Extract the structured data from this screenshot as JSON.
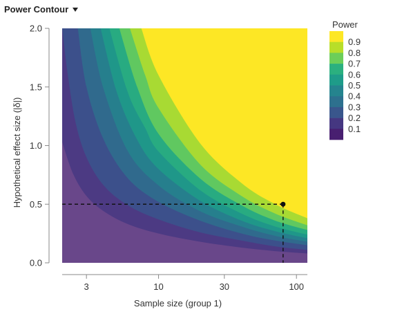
{
  "panel": {
    "title": "Power Contour"
  },
  "chart_data": {
    "type": "heatmap",
    "subtype": "contour",
    "xlabel": "Sample size (group 1)",
    "ylabel": "Hypothetical effect size (|δ|)",
    "x_scale": "log",
    "xlim": [
      2,
      120
    ],
    "ylim": [
      0,
      2
    ],
    "x_ticks": [
      3,
      10,
      30,
      100
    ],
    "x_tick_labels": [
      "3",
      "10",
      "30",
      "100"
    ],
    "y_ticks": [
      0,
      0.5,
      1,
      1.5,
      2
    ],
    "y_tick_labels": [
      "0.0",
      "0.5",
      "1.0",
      "1.5",
      "2.0"
    ],
    "legend": {
      "title": "Power",
      "position": "right",
      "levels": [
        0.9,
        0.8,
        0.7,
        0.6,
        0.5,
        0.4,
        0.3,
        0.2,
        0.1
      ],
      "labels": [
        "0.9",
        "0.8",
        "0.7",
        "0.6",
        "0.5",
        "0.4",
        "0.3",
        "0.2",
        "0.1"
      ],
      "colors": [
        "#FDE725",
        "#B8DE29",
        "#6CCE59",
        "#2BB07F",
        "#1E9C89",
        "#25848E",
        "#2D708E",
        "#39568C",
        "#453781",
        "#481F70"
      ]
    },
    "contours": [
      {
        "level": 0.1,
        "color": "#453781",
        "points": [
          [
            2,
            1.03
          ],
          [
            2.4,
            0.76
          ],
          [
            3,
            0.57
          ],
          [
            4,
            0.44
          ],
          [
            6,
            0.33
          ],
          [
            10,
            0.25
          ],
          [
            20,
            0.18
          ],
          [
            40,
            0.13
          ],
          [
            70,
            0.1
          ],
          [
            120,
            0.08
          ]
        ]
      },
      {
        "level": 0.2,
        "color": "#39568C",
        "points": [
          [
            2,
            2.0
          ],
          [
            2.2,
            1.6
          ],
          [
            2.5,
            1.2
          ],
          [
            3,
            0.9
          ],
          [
            4,
            0.66
          ],
          [
            6,
            0.49
          ],
          [
            10,
            0.37
          ],
          [
            20,
            0.26
          ],
          [
            40,
            0.19
          ],
          [
            70,
            0.14
          ],
          [
            120,
            0.11
          ]
        ]
      },
      {
        "level": 0.3,
        "color": "#2D708E",
        "points": [
          [
            2.6,
            2.0
          ],
          [
            3,
            1.5
          ],
          [
            4,
            1.05
          ],
          [
            6,
            0.72
          ],
          [
            10,
            0.52
          ],
          [
            20,
            0.36
          ],
          [
            40,
            0.25
          ],
          [
            70,
            0.19
          ],
          [
            120,
            0.15
          ]
        ]
      },
      {
        "level": 0.4,
        "color": "#25848E",
        "points": [
          [
            3.2,
            2.0
          ],
          [
            4,
            1.48
          ],
          [
            6,
            0.95
          ],
          [
            10,
            0.66
          ],
          [
            20,
            0.44
          ],
          [
            40,
            0.31
          ],
          [
            70,
            0.23
          ],
          [
            120,
            0.18
          ]
        ]
      },
      {
        "level": 0.5,
        "color": "#1E9C89",
        "points": [
          [
            3.8,
            2.0
          ],
          [
            5,
            1.45
          ],
          [
            7,
            1.05
          ],
          [
            10,
            0.8
          ],
          [
            20,
            0.53
          ],
          [
            40,
            0.36
          ],
          [
            70,
            0.27
          ],
          [
            120,
            0.21
          ]
        ]
      },
      {
        "level": 0.6,
        "color": "#2BB07F",
        "points": [
          [
            4.4,
            2.0
          ],
          [
            6,
            1.45
          ],
          [
            8,
            1.15
          ],
          [
            10,
            0.95
          ],
          [
            20,
            0.62
          ],
          [
            40,
            0.42
          ],
          [
            70,
            0.31
          ],
          [
            120,
            0.24
          ]
        ]
      },
      {
        "level": 0.7,
        "color": "#6CCE59",
        "points": [
          [
            5.2,
            2.0
          ],
          [
            7,
            1.5
          ],
          [
            10,
            1.1
          ],
          [
            20,
            0.72
          ],
          [
            40,
            0.49
          ],
          [
            70,
            0.36
          ],
          [
            120,
            0.28
          ]
        ]
      },
      {
        "level": 0.8,
        "color": "#B8DE29",
        "points": [
          [
            6.2,
            2.0
          ],
          [
            8,
            1.6
          ],
          [
            10,
            1.32
          ],
          [
            20,
            0.84
          ],
          [
            40,
            0.57
          ],
          [
            70,
            0.42
          ],
          [
            120,
            0.32
          ]
        ]
      },
      {
        "level": 0.9,
        "color": "#FDE725",
        "points": [
          [
            7.5,
            2.0
          ],
          [
            10,
            1.6
          ],
          [
            20,
            1.02
          ],
          [
            40,
            0.68
          ],
          [
            70,
            0.5
          ],
          [
            120,
            0.38
          ]
        ]
      }
    ],
    "base_color": "#481F70",
    "annotation": {
      "x": 80,
      "y": 0.5,
      "style": "dashed-reference-lines"
    }
  }
}
